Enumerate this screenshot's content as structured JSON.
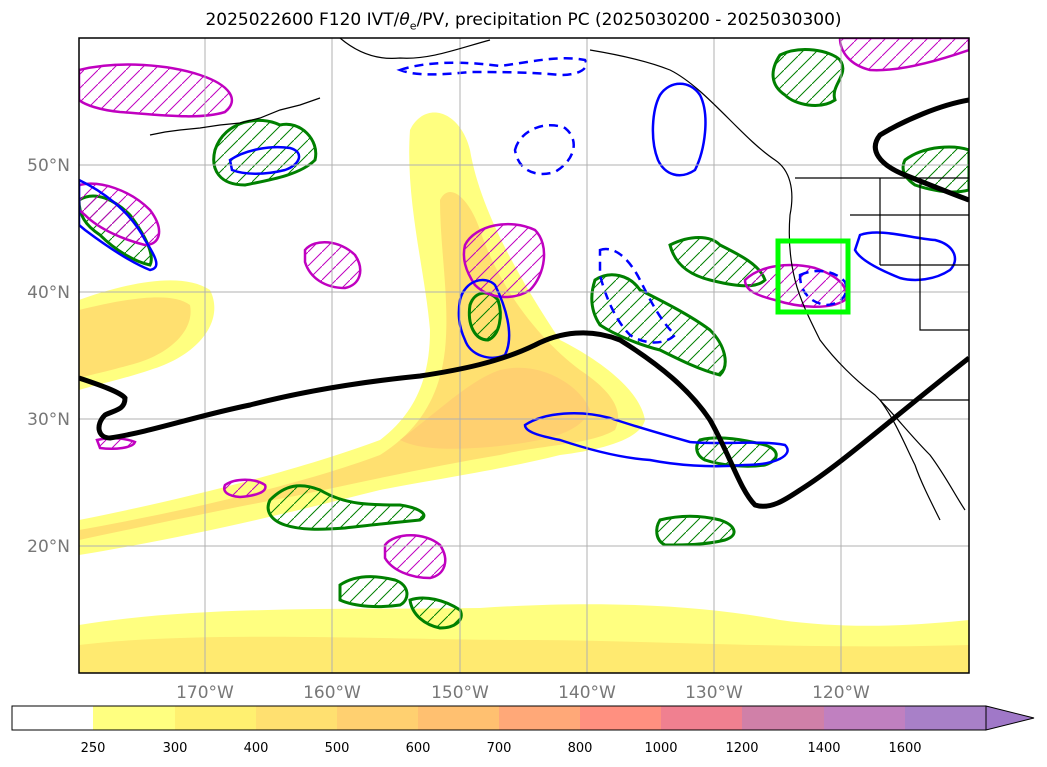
{
  "title": {
    "prefix": "2025022600 F120 IVT/",
    "theta": "θ",
    "sub": "e",
    "suffix": "/PV, precipitation PC (2025030200 - 2025030300)"
  },
  "map": {
    "lon_labels": [
      "170°W",
      "160°W",
      "150°W",
      "140°W",
      "130°W",
      "120°W"
    ],
    "lat_labels": [
      "50°N",
      "40°N",
      "30°N",
      "20°N"
    ],
    "lon_range": [
      -180,
      -110
    ],
    "lat_range": [
      10,
      60
    ],
    "gridlines": true,
    "highlight_box_color": "#00ff00",
    "contour_colors": {
      "thick_line": "#000000",
      "blue": "#0000ff",
      "green": "#008000",
      "magenta": "#c000c0"
    }
  },
  "colorbar": {
    "ticks": [
      "250",
      "300",
      "400",
      "500",
      "600",
      "700",
      "800",
      "1000",
      "1200",
      "1400",
      "1600"
    ],
    "colors": [
      "#ffffff",
      "#ffff80",
      "#fff070",
      "#ffe070",
      "#ffd070",
      "#ffc070",
      "#ffa878",
      "#ff9080",
      "#f08090",
      "#d080a8",
      "#c080c0",
      "#a880c8",
      "#a078c8"
    ],
    "extend": "max"
  }
}
